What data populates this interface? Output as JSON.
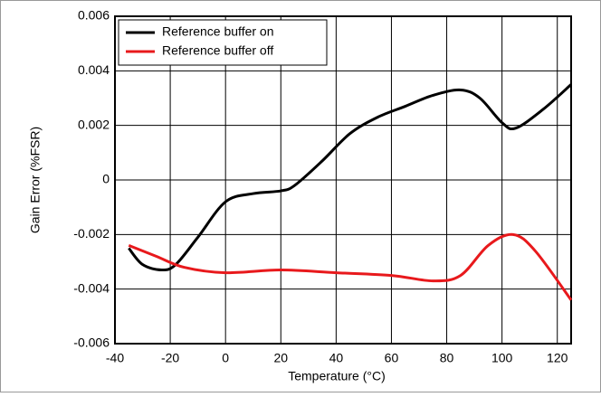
{
  "chart_data": {
    "type": "line",
    "x_label": "Temperature (°C)",
    "y_label": "Gain Error (%FSR)",
    "xlim": [
      -40,
      125
    ],
    "xticks": [
      -40,
      -20,
      0,
      20,
      40,
      60,
      80,
      100,
      120
    ],
    "ylim": [
      -0.006,
      0.006
    ],
    "yticks": [
      -0.006,
      -0.004,
      -0.002,
      0,
      0.002,
      0.004,
      0.006
    ],
    "grid": true,
    "legend": "upper left",
    "series": [
      {
        "name": "Reference buffer on",
        "color": "#000000",
        "x": [
          -35,
          -30,
          -23,
          -18,
          -10,
          0,
          10,
          20,
          25,
          35,
          45,
          55,
          65,
          75,
          85,
          92,
          100,
          105,
          115,
          125
        ],
        "values": [
          -0.0025,
          -0.0031,
          -0.0033,
          -0.0031,
          -0.0021,
          -0.0008,
          -0.0005,
          -0.0004,
          -0.0002,
          0.0007,
          0.0017,
          0.0023,
          0.0027,
          0.0031,
          0.0033,
          0.003,
          0.0021,
          0.0019,
          0.0026,
          0.0035
        ]
      },
      {
        "name": "Reference buffer off",
        "color": "#e8191c",
        "x": [
          -35,
          -25,
          -15,
          0,
          20,
          40,
          60,
          75,
          85,
          95,
          104,
          112,
          125
        ],
        "values": [
          -0.0024,
          -0.0028,
          -0.0032,
          -0.0034,
          -0.0033,
          -0.0034,
          -0.0035,
          -0.0037,
          -0.0035,
          -0.0024,
          -0.002,
          -0.0026,
          -0.0044
        ]
      }
    ]
  }
}
